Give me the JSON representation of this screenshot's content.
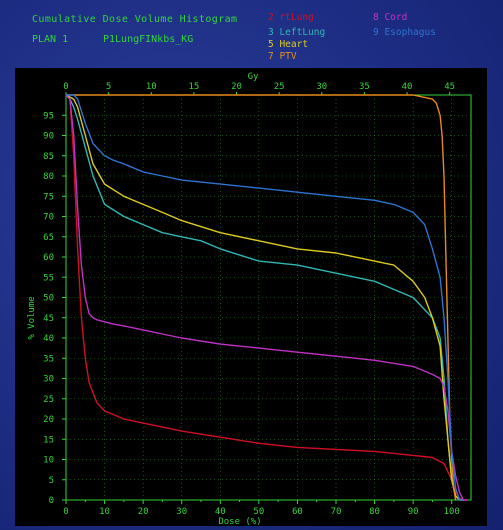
{
  "header": {
    "title": "Cumulative Dose Volume Histogram",
    "plan_label": "PLAN  1",
    "plan_name": "P1LungFINkbs_KG"
  },
  "chart_data": {
    "type": "line",
    "title": "Cumulative Dose Volume Histogram",
    "xlabel_bottom": "Dose (%)",
    "xlabel_top": "Gy",
    "ylabel": "% Volume",
    "xlim_percent": [
      0,
      105
    ],
    "xlim_gy": [
      0,
      47.5
    ],
    "ylim": [
      0,
      100
    ],
    "x_ticks_bottom": [
      "0",
      "10",
      "20",
      "30",
      "40",
      "50",
      "60",
      "70",
      "80",
      "90",
      "100"
    ],
    "x_ticks_top": [
      "0",
      "5",
      "10",
      "15",
      "20",
      "25",
      "30",
      "35",
      "40",
      "45"
    ],
    "y_ticks": [
      "0",
      "5",
      "10",
      "15",
      "20",
      "25",
      "30",
      "35",
      "40",
      "45",
      "50",
      "55",
      "60",
      "65",
      "70",
      "75",
      "80",
      "85",
      "90",
      "95"
    ],
    "grid": true,
    "legend_placement": "top",
    "series": [
      {
        "name": "2 rtLung",
        "color": "#d10f24",
        "x": [
          0,
          1,
          2,
          3,
          4,
          5,
          6,
          8,
          10,
          15,
          20,
          25,
          30,
          40,
          50,
          60,
          70,
          80,
          90,
          95,
          98,
          100,
          101,
          102,
          103,
          104
        ],
        "y": [
          100,
          99,
          85,
          62,
          45,
          35,
          29,
          24,
          22,
          20,
          19,
          18,
          17,
          15.5,
          14,
          13,
          12.5,
          12,
          11,
          10.5,
          9,
          5,
          2,
          0.5,
          0,
          0
        ]
      },
      {
        "name": "3 LeftLung",
        "color": "#2fb7b2",
        "x": [
          0,
          1,
          2,
          3,
          5,
          7,
          10,
          15,
          20,
          25,
          30,
          35,
          40,
          50,
          60,
          70,
          80,
          90,
          95,
          97,
          98,
          99,
          100,
          101,
          102,
          103
        ],
        "y": [
          100,
          99,
          97,
          94,
          87,
          80,
          73,
          70,
          68,
          66,
          65,
          64,
          62,
          59,
          58,
          56,
          54,
          50,
          45,
          40,
          30,
          15,
          5,
          1,
          0,
          0
        ]
      },
      {
        "name": "5 Heart",
        "color": "#dcca1e",
        "x": [
          0,
          2,
          3,
          5,
          7,
          10,
          15,
          20,
          25,
          30,
          40,
          50,
          60,
          70,
          80,
          85,
          90,
          93,
          95,
          97,
          98,
          99,
          100,
          101,
          102,
          103
        ],
        "y": [
          100,
          99,
          97,
          90,
          83,
          78,
          75,
          73,
          71,
          69,
          66,
          64,
          62,
          61,
          59,
          58,
          54,
          50,
          45,
          38,
          25,
          15,
          5,
          1,
          0,
          0
        ]
      },
      {
        "name": "7 PTV",
        "color": "#e78a1c",
        "x": [
          0,
          30,
          60,
          90,
          95,
          96,
          97,
          97.5,
          98,
          98.5,
          99,
          99.5,
          100,
          100.5,
          101
        ],
        "y": [
          100,
          100,
          100,
          100,
          99,
          98,
          95,
          90,
          80,
          60,
          40,
          20,
          10,
          3,
          0
        ]
      },
      {
        "name": "8 Cord",
        "color": "#c032c6",
        "x": [
          0,
          1,
          2,
          3,
          4,
          5,
          6,
          7,
          8,
          10,
          12,
          15,
          20,
          25,
          30,
          40,
          50,
          60,
          70,
          80,
          90,
          95,
          97,
          98,
          99,
          100,
          101,
          102,
          103,
          104
        ],
        "y": [
          100,
          99,
          90,
          72,
          58,
          50,
          46,
          45,
          44.5,
          44,
          43.5,
          43,
          42,
          41,
          40,
          38.5,
          37.5,
          36.5,
          35.5,
          34.5,
          33,
          31,
          30,
          28,
          22,
          12,
          6,
          2,
          0,
          0
        ]
      },
      {
        "name": "9 Esophagus",
        "color": "#2d73cf",
        "x": [
          0,
          2,
          3,
          5,
          7,
          10,
          12,
          15,
          20,
          25,
          30,
          40,
          50,
          60,
          70,
          80,
          85,
          90,
          93,
          95,
          97,
          98,
          99,
          100,
          101,
          102,
          103
        ],
        "y": [
          100,
          100,
          99,
          93,
          88,
          85,
          84,
          83,
          81,
          80,
          79,
          78,
          77,
          76,
          75,
          74,
          73,
          71,
          68,
          62,
          55,
          45,
          30,
          12,
          3,
          0,
          0
        ]
      }
    ]
  }
}
